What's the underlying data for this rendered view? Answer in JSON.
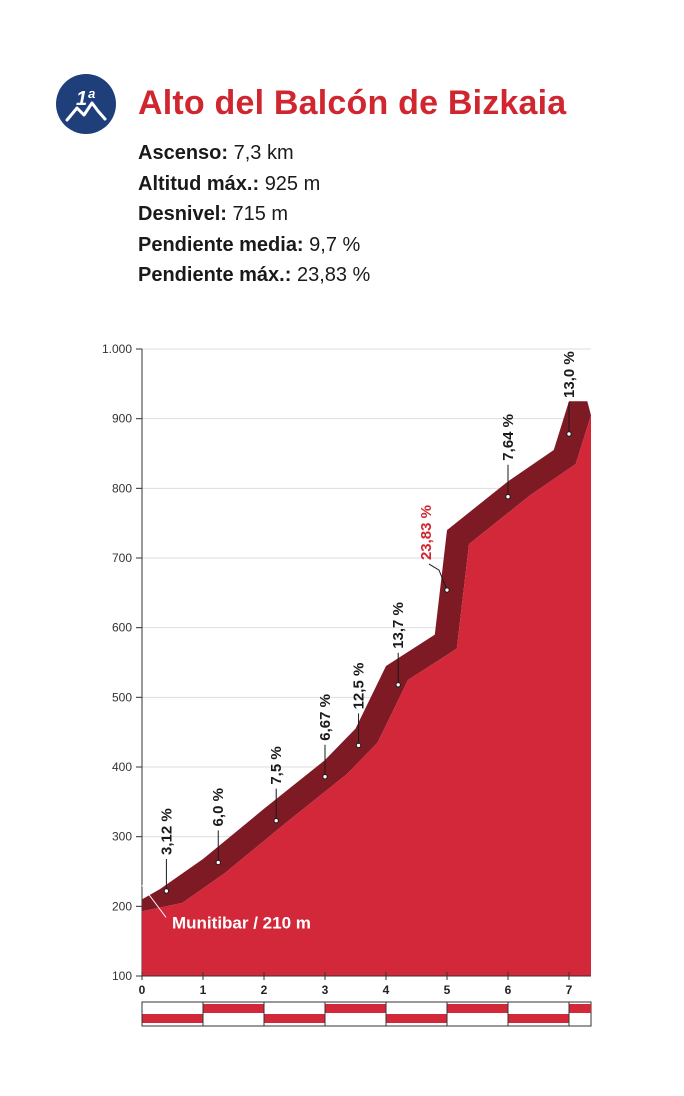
{
  "header": {
    "badge_text": "1ª",
    "title": "Alto del Balcón de Bizkaia",
    "stats": [
      {
        "label": "Ascenso:",
        "value": "7,3 km"
      },
      {
        "label": "Altitud máx.:",
        "value": "925 m"
      },
      {
        "label": "Desnivel:",
        "value": "715 m"
      },
      {
        "label": "Pendiente media:",
        "value": "9,7 %"
      },
      {
        "label": "Pendiente máx.:",
        "value": "23,83 %"
      }
    ]
  },
  "colors": {
    "title": "#d0262f",
    "profile_fill": "#d3283a",
    "profile_shade": "#7e1a24",
    "badge": "#1f3f7a"
  },
  "chart_data": {
    "type": "area",
    "xlabel": "",
    "ylabel": "",
    "xlim": [
      0,
      7.3
    ],
    "ylim": [
      100,
      1000
    ],
    "x_ticks": [
      0,
      1,
      2,
      3,
      4,
      5,
      6,
      7
    ],
    "x_tick_labels": [
      "0",
      "1",
      "2",
      "3",
      "4",
      "5",
      "6",
      "7"
    ],
    "y_ticks": [
      100,
      200,
      300,
      400,
      500,
      600,
      700,
      800,
      900,
      1000
    ],
    "y_tick_labels": [
      "100",
      "200",
      "300",
      "400",
      "500",
      "600",
      "700",
      "800",
      "900",
      "1.000"
    ],
    "grid": true,
    "profile": {
      "x": [
        0,
        0.3,
        1,
        2,
        3,
        3.5,
        4,
        4.8,
        5.0,
        6.0,
        6.75,
        7.0,
        7.3
      ],
      "y": [
        210,
        225,
        268,
        340,
        410,
        455,
        545,
        590,
        740,
        810,
        855,
        925,
        925
      ]
    },
    "grade_labels": [
      {
        "x": 0.4,
        "y": 222,
        "text": "3,12 %",
        "max": false
      },
      {
        "x": 1.25,
        "y": 263,
        "text": "6,0 %",
        "max": false
      },
      {
        "x": 2.2,
        "y": 323,
        "text": "7,5 %",
        "max": false
      },
      {
        "x": 3.0,
        "y": 386,
        "text": "6,67 %",
        "max": false
      },
      {
        "x": 3.55,
        "y": 431,
        "text": "12,5 %",
        "max": false
      },
      {
        "x": 4.2,
        "y": 518,
        "text": "13,7 %",
        "max": false
      },
      {
        "x": 5.0,
        "y": 654,
        "text": "23,83 %",
        "max": true
      },
      {
        "x": 6.0,
        "y": 788,
        "text": "7,64 %",
        "max": false
      },
      {
        "x": 7.0,
        "y": 878,
        "text": "13,0 %",
        "max": false
      }
    ],
    "annotations": [
      {
        "text": "Munitibar / 210 m",
        "x": 0,
        "y": 210
      }
    ]
  }
}
